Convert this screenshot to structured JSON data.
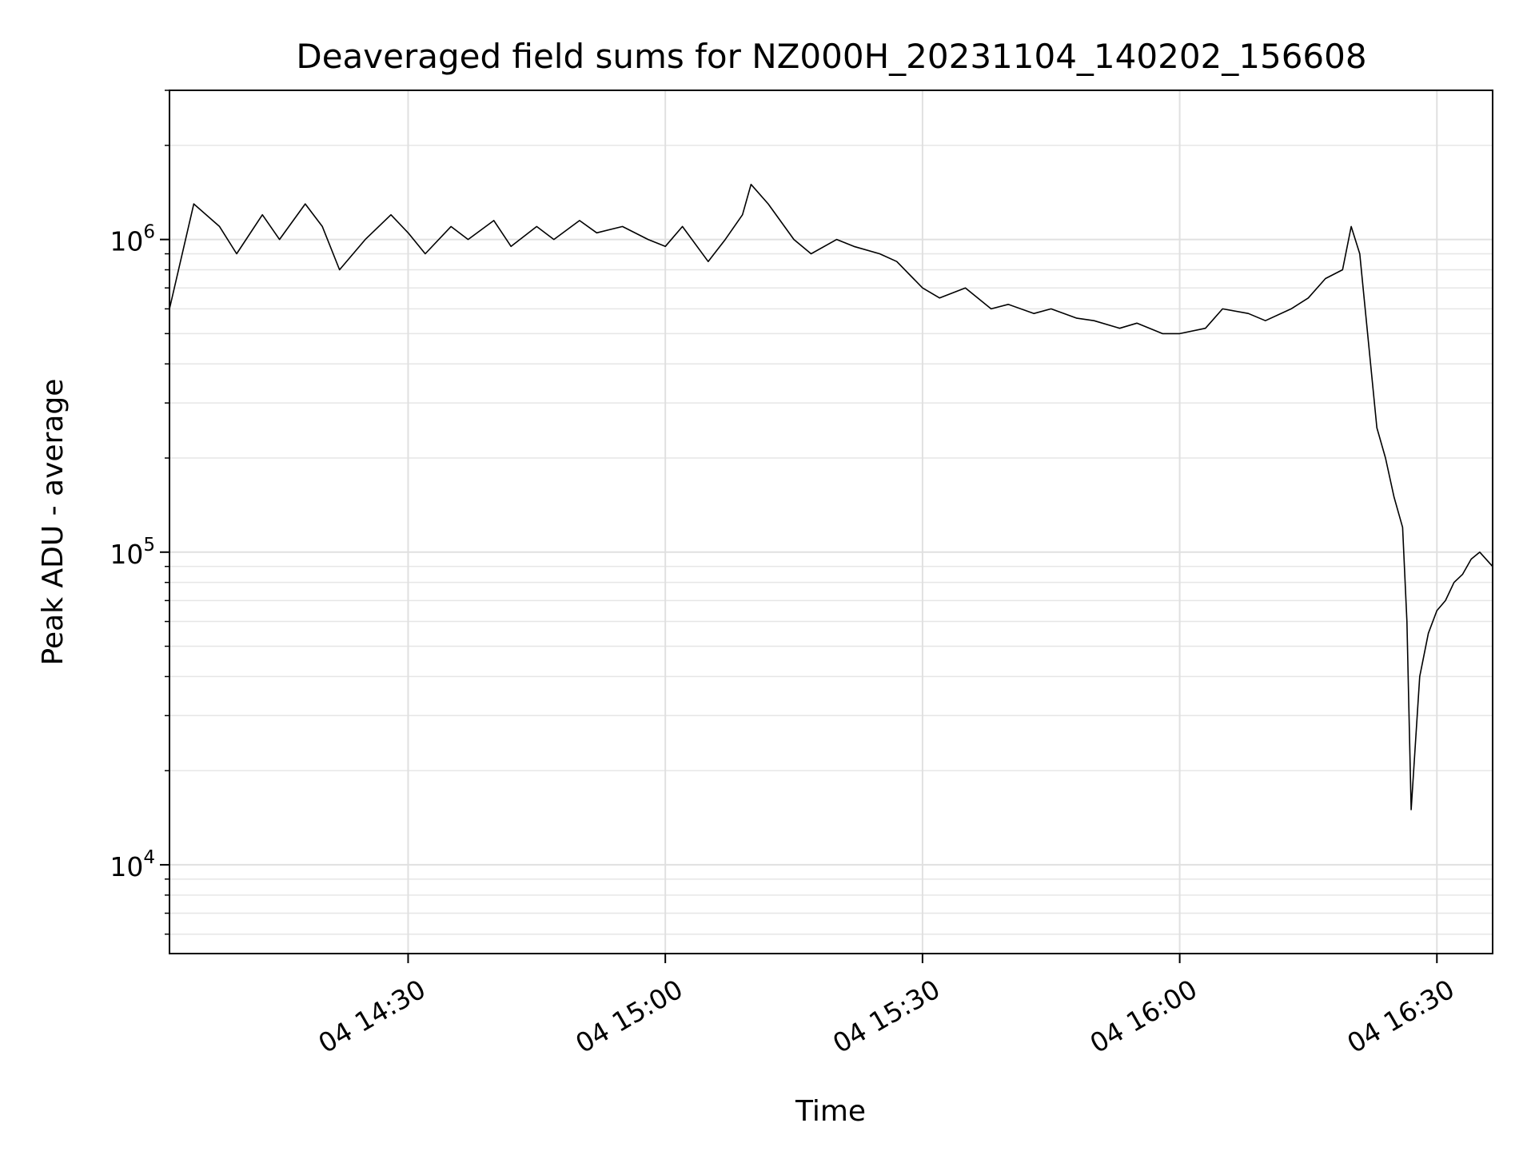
{
  "chart_data": {
    "type": "line",
    "title": "Deaveraged field sums for NZ000H_20231104_140202_156608",
    "xlabel": "Time",
    "ylabel": "Peak ADU - average",
    "yscale": "log",
    "ylim": [
      5200,
      3000000
    ],
    "xlim": [
      "2023-11-04 14:02:10",
      "2023-11-04 16:36:30"
    ],
    "grid": true,
    "legend": "none",
    "line_color": "#000000",
    "x_ticks": [
      {
        "time": "2023-11-04 14:30",
        "label": "04 14:30"
      },
      {
        "time": "2023-11-04 15:00",
        "label": "04 15:00"
      },
      {
        "time": "2023-11-04 15:30",
        "label": "04 15:30"
      },
      {
        "time": "2023-11-04 16:00",
        "label": "04 16:00"
      },
      {
        "time": "2023-11-04 16:30",
        "label": "04 16:30"
      }
    ],
    "y_ticks": [
      {
        "value": 10000,
        "base": "10",
        "exp": "4"
      },
      {
        "value": 100000,
        "base": "10",
        "exp": "5"
      },
      {
        "value": 1000000,
        "base": "10",
        "exp": "6"
      }
    ],
    "series": [
      {
        "x": [
          "2023-11-04 14:02:10",
          "2023-11-04 14:05:00",
          "2023-11-04 14:08:00",
          "2023-11-04 14:10:00",
          "2023-11-04 14:13:00",
          "2023-11-04 14:15:00",
          "2023-11-04 14:18:00",
          "2023-11-04 14:20:00",
          "2023-11-04 14:22:00",
          "2023-11-04 14:25:00",
          "2023-11-04 14:28:00",
          "2023-11-04 14:30:00",
          "2023-11-04 14:32:00",
          "2023-11-04 14:35:00",
          "2023-11-04 14:37:00",
          "2023-11-04 14:40:00",
          "2023-11-04 14:42:00",
          "2023-11-04 14:45:00",
          "2023-11-04 14:47:00",
          "2023-11-04 14:50:00",
          "2023-11-04 14:52:00",
          "2023-11-04 14:55:00",
          "2023-11-04 14:58:00",
          "2023-11-04 15:00:00",
          "2023-11-04 15:02:00",
          "2023-11-04 15:05:00",
          "2023-11-04 15:07:00",
          "2023-11-04 15:09:00",
          "2023-11-04 15:10:00",
          "2023-11-04 15:12:00",
          "2023-11-04 15:15:00",
          "2023-11-04 15:17:00",
          "2023-11-04 15:20:00",
          "2023-11-04 15:22:00",
          "2023-11-04 15:25:00",
          "2023-11-04 15:27:00",
          "2023-11-04 15:30:00",
          "2023-11-04 15:32:00",
          "2023-11-04 15:35:00",
          "2023-11-04 15:38:00",
          "2023-11-04 15:40:00",
          "2023-11-04 15:43:00",
          "2023-11-04 15:45:00",
          "2023-11-04 15:48:00",
          "2023-11-04 15:50:00",
          "2023-11-04 15:53:00",
          "2023-11-04 15:55:00",
          "2023-11-04 15:58:00",
          "2023-11-04 16:00:00",
          "2023-11-04 16:03:00",
          "2023-11-04 16:05:00",
          "2023-11-04 16:08:00",
          "2023-11-04 16:10:00",
          "2023-11-04 16:13:00",
          "2023-11-04 16:15:00",
          "2023-11-04 16:17:00",
          "2023-11-04 16:19:00",
          "2023-11-04 16:20:00",
          "2023-11-04 16:21:00",
          "2023-11-04 16:23:00",
          "2023-11-04 16:24:00",
          "2023-11-04 16:25:00",
          "2023-11-04 16:26:00",
          "2023-11-04 16:26:30",
          "2023-11-04 16:27:00",
          "2023-11-04 16:28:00",
          "2023-11-04 16:29:00",
          "2023-11-04 16:30:00",
          "2023-11-04 16:31:00",
          "2023-11-04 16:32:00",
          "2023-11-04 16:33:00",
          "2023-11-04 16:34:00",
          "2023-11-04 16:35:00",
          "2023-11-04 16:36:30"
        ],
        "y": [
          600000,
          1300000,
          1100000,
          900000,
          1200000,
          1000000,
          1300000,
          1100000,
          800000,
          1000000,
          1200000,
          1050000,
          900000,
          1100000,
          1000000,
          1150000,
          950000,
          1100000,
          1000000,
          1150000,
          1050000,
          1100000,
          1000000,
          950000,
          1100000,
          850000,
          1000000,
          1200000,
          1500000,
          1300000,
          1000000,
          900000,
          1000000,
          950000,
          900000,
          850000,
          700000,
          650000,
          700000,
          600000,
          620000,
          580000,
          600000,
          560000,
          550000,
          520000,
          540000,
          500000,
          500000,
          520000,
          600000,
          580000,
          550000,
          600000,
          650000,
          750000,
          800000,
          1100000,
          900000,
          250000,
          200000,
          150000,
          120000,
          60000,
          15000,
          40000,
          55000,
          65000,
          70000,
          80000,
          85000,
          95000,
          100000,
          90000
        ]
      }
    ]
  }
}
